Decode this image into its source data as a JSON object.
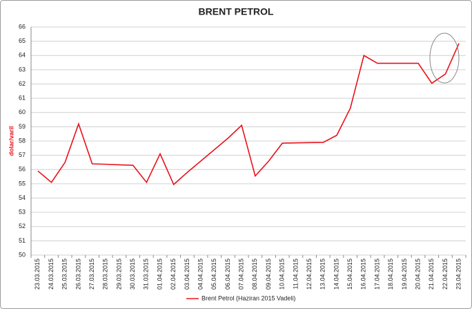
{
  "chart_data": {
    "type": "line",
    "title": "BRENT PETROL",
    "y_label": "dolar/varil",
    "categories": [
      "23.03.2015",
      "24.03.2015",
      "25.03.2015",
      "26.03.2015",
      "27.03.2015",
      "28.03.2015",
      "29.03.2015",
      "30.03.2015",
      "31.03.2015",
      "01.04.2015",
      "02.04.2015",
      "03.04.2015",
      "04.04.2015",
      "05.04.2015",
      "06.04.2015",
      "07.04.2015",
      "08.04.2015",
      "09.04.2015",
      "10.04.2015",
      "11.04.2015",
      "12.04.2015",
      "13.04.2015",
      "14.04.2015",
      "15.04.2015",
      "16.04.2015",
      "17.04.2015",
      "18.04.2015",
      "19.04.2015",
      "20.04.2015",
      "21.04.2015",
      "22.04.2015",
      "23.04.2015"
    ],
    "series": [
      {
        "name": "Brent Petrol (Haziran 2015 Vadeli)",
        "color": "#e8101a",
        "values": [
          55.9,
          55.1,
          56.5,
          59.2,
          56.4,
          56.37,
          56.33,
          56.3,
          55.1,
          57.1,
          54.95,
          55.8,
          56.6,
          57.4,
          58.2,
          59.1,
          55.55,
          56.6,
          57.85,
          57.87,
          57.89,
          57.9,
          58.4,
          60.3,
          64.0,
          63.45,
          63.45,
          63.45,
          63.45,
          62.05,
          62.7,
          64.85
        ]
      }
    ],
    "ylim": [
      50,
      66
    ],
    "yticks": [
      50,
      51,
      52,
      53,
      54,
      55,
      56,
      57,
      58,
      59,
      60,
      61,
      62,
      63,
      64,
      65,
      66
    ],
    "grid": true,
    "legend": "bottom"
  }
}
